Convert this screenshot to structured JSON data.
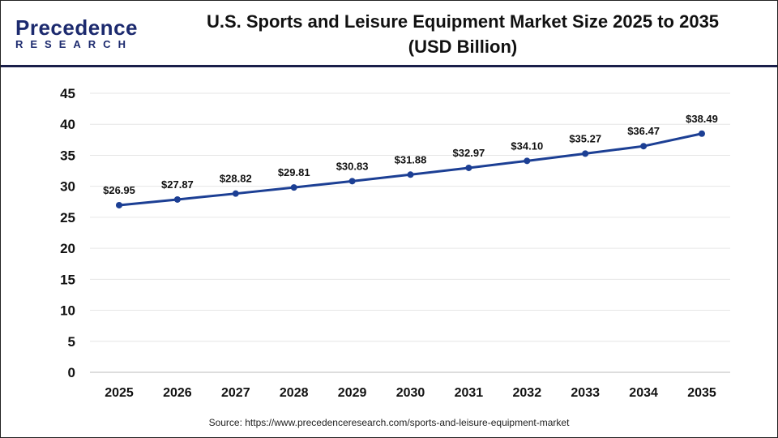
{
  "header": {
    "logo_text_top": "Precedence",
    "logo_text_bottom": "RESEARCH",
    "title_line1": "U.S. Sports and Leisure Equipment Market Size 2025 to 2035",
    "title_line2": "(USD Billion)"
  },
  "source": "Source: https://www.precedenceresearch.com/sports-and-leisure-equipment-market",
  "chart_data": {
    "type": "line",
    "title": "U.S. Sports and Leisure Equipment Market Size 2025 to 2035 (USD Billion)",
    "categories": [
      "2025",
      "2026",
      "2027",
      "2028",
      "2029",
      "2030",
      "2031",
      "2032",
      "2033",
      "2034",
      "2035"
    ],
    "series": [
      {
        "values": [
          26.95,
          27.87,
          28.82,
          29.81,
          30.83,
          31.88,
          32.97,
          34.1,
          35.27,
          36.47,
          38.49
        ]
      }
    ],
    "data_labels": [
      "$26.95",
      "$27.87",
      "$28.82",
      "$29.81",
      "$30.83",
      "$31.88",
      "$32.97",
      "$34.10",
      "$35.27",
      "$36.47",
      "$38.49"
    ],
    "ylim": [
      0,
      45
    ],
    "yticks": [
      0,
      5,
      10,
      15,
      20,
      25,
      30,
      35,
      40,
      45
    ],
    "grid": true,
    "color": "#1c3f94"
  }
}
